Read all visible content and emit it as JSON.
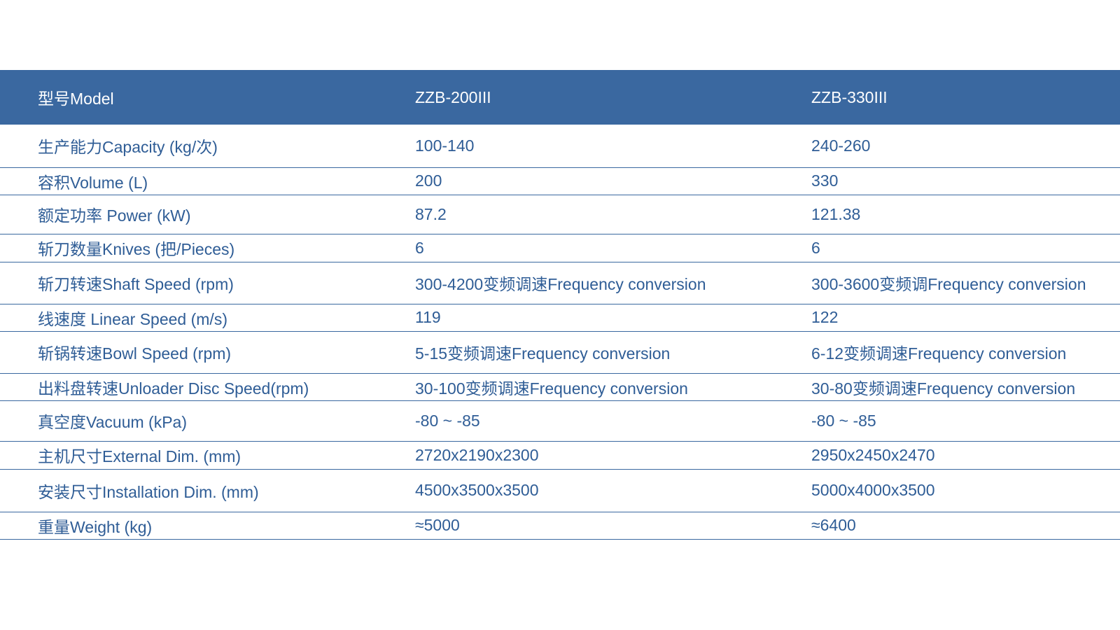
{
  "table": {
    "header": [
      "型号Model",
      "ZZB-200III",
      "ZZB-330III"
    ],
    "rows": [
      [
        "生产能力Capacity (kg/次)",
        "100-140",
        "240-260"
      ],
      [
        "容积Volume (L)",
        "200",
        "330"
      ],
      [
        "额定功率 Power (kW)",
        "87.2",
        "121.38"
      ],
      [
        "斩刀数量Knives (把/Pieces)",
        "6",
        "6"
      ],
      [
        "斩刀转速Shaft Speed (rpm)",
        "300-4200变频调速Frequency conversion",
        "300-3600变频调Frequency conversion"
      ],
      [
        "线速度 Linear Speed (m/s)",
        "119",
        "122"
      ],
      [
        "斩锅转速Bowl Speed (rpm)",
        "5-15变频调速Frequency conversion",
        "6-12变频调速Frequency conversion"
      ],
      [
        "出料盘转速Unloader Disc Speed(rpm)",
        "30-100变频调速Frequency conversion",
        "30-80变频调速Frequency conversion"
      ],
      [
        "真空度Vacuum (kPa)",
        "-80 ~ -85",
        "-80 ~ -85"
      ],
      [
        "主机尺寸External Dim. (mm)",
        "2720x2190x2300",
        "2950x2450x2470"
      ],
      [
        "安装尺寸Installation Dim. (mm)",
        "4500x3500x3500",
        "5000x4000x3500"
      ],
      [
        "重量Weight (kg)",
        "≈5000",
        "≈6400"
      ]
    ]
  }
}
